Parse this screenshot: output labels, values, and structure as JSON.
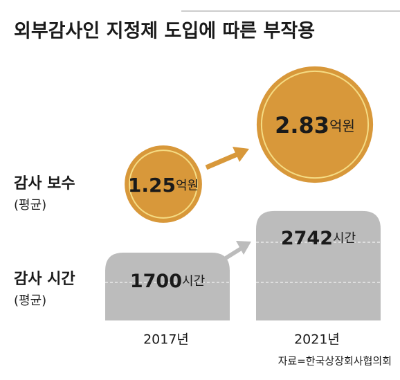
{
  "title": "외부감사인 지정제 도입에 따른 부작용",
  "source": "자료=한국상장회사협의회",
  "chart_data": [
    {
      "type": "bubble",
      "name": "감사 보수",
      "note": "(평균)",
      "unit": "억원",
      "values": [
        1.25,
        2.83
      ],
      "color": "#d8983a",
      "ring_color": "#f5dc84"
    },
    {
      "type": "bar",
      "name": "감사 시간",
      "note": "(평균)",
      "unit": "시간",
      "categories": [
        "2017년",
        "2021년"
      ],
      "values": [
        1700,
        2742
      ],
      "ylim": [
        0,
        3000
      ],
      "color": "#bcbcbc"
    }
  ]
}
